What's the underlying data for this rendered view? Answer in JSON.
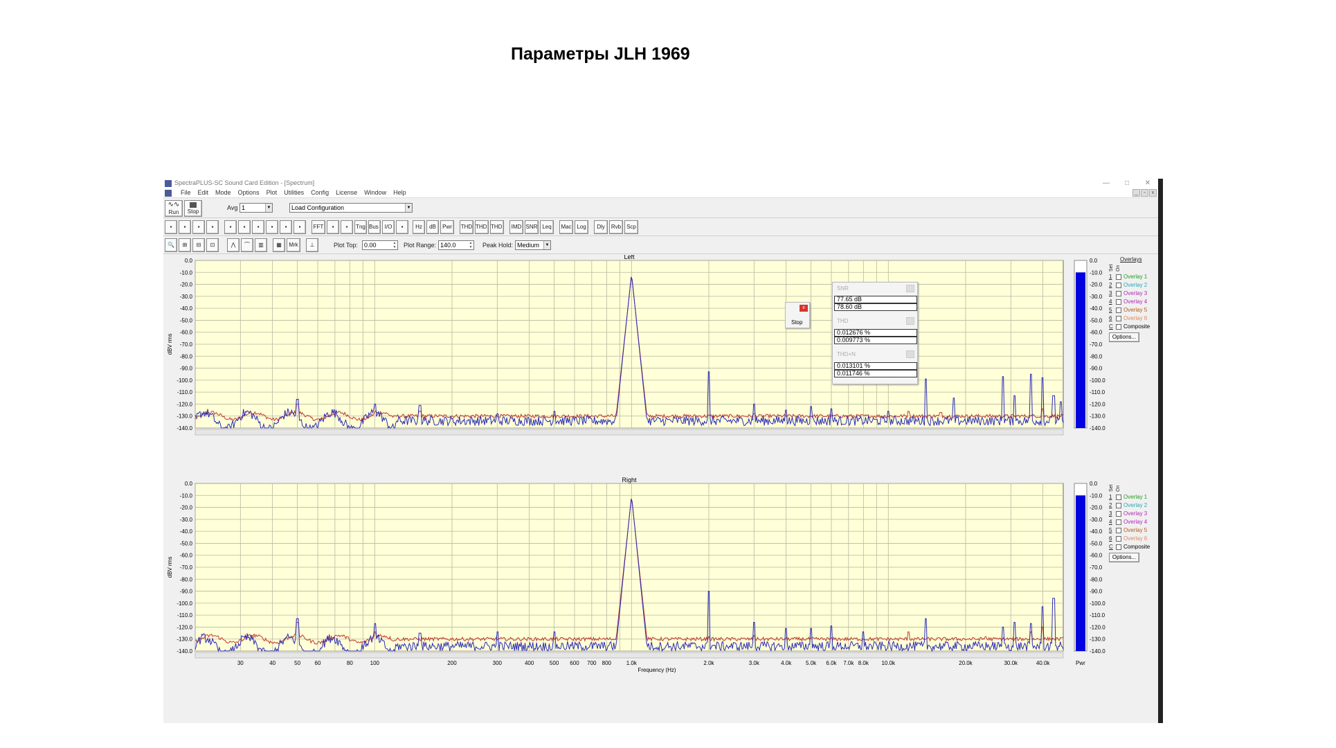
{
  "page_title": "Параметры JLH 1969",
  "window": {
    "title": "SpectraPLUS-SC Sound Card Edition - [Spectrum]",
    "minimize_glyph": "—",
    "maximize_glyph": "□",
    "close_glyph": "✕"
  },
  "menu": [
    "File",
    "Edit",
    "Mode",
    "Options",
    "Plot",
    "Utilities",
    "Config",
    "License",
    "Window",
    "Help"
  ],
  "toolbar1": {
    "run_label": "Run",
    "stop_label": "Stop",
    "avg_label": "Avg",
    "avg_value": "1",
    "config_value": "Load Configuration"
  },
  "toolbar2": [
    "",
    "",
    "",
    "",
    "",
    "",
    "",
    "",
    "",
    "",
    "FFT",
    "",
    "",
    "Tng",
    "Bus Ctrl",
    "I/O",
    "",
    "Hz",
    "dB",
    "Pwr",
    "THD",
    "THD +N",
    "THD Freq",
    "IMD",
    "SNR",
    "Leq",
    "Mac",
    "Log",
    "Dly",
    "Rvb",
    "Scp"
  ],
  "toolbar3": {
    "mrk_label": "Mrk",
    "plot_top_label": "Plot Top:",
    "plot_top_value": "0.00",
    "plot_range_label": "Plot Range:",
    "plot_range_value": "140.0",
    "peak_hold_label": "Peak Hold:",
    "peak_hold_value": "Medium"
  },
  "stop_popup": {
    "label": "Stop",
    "close": "x"
  },
  "meters": [
    {
      "name": "SNR",
      "values": [
        "77.65 dB",
        "78.60 dB"
      ]
    },
    {
      "name": "THD",
      "values": [
        "0.012676 %",
        "0.009773 %"
      ]
    },
    {
      "name": "THD+N",
      "values": [
        "0.013101 %",
        "0.011746 %"
      ]
    }
  ],
  "overlays": {
    "title": "Overlays",
    "col_set": "Set",
    "col_on": "On",
    "items": [
      {
        "num": "1",
        "label": "Overlay 1",
        "color": "#22a022"
      },
      {
        "num": "2",
        "label": "Overlay 2",
        "color": "#2aa6b8"
      },
      {
        "num": "3",
        "label": "Overlay 3",
        "color": "#b02ab0"
      },
      {
        "num": "4",
        "label": "Overlay 4",
        "color": "#b02ab0"
      },
      {
        "num": "5",
        "label": "Overlay 5",
        "color": "#b35a1a"
      },
      {
        "num": "6",
        "label": "Overlay 6",
        "color": "#e08a5a"
      },
      {
        "num": "C",
        "label": "Composite",
        "color": "#000000"
      }
    ],
    "options_label": "Options..."
  },
  "chart_data": {
    "type": "line",
    "xlabel": "Frequency (Hz)",
    "x_scale": "log",
    "xlim": [
      20,
      48000
    ],
    "x_ticks": [
      "30",
      "40",
      "50",
      "60",
      "80",
      "100",
      "200",
      "300",
      "400",
      "500",
      "600",
      "700",
      "800",
      "1.0k",
      "2.0k",
      "3.0k",
      "4.0k",
      "5.0k",
      "6.0k",
      "7.0k",
      "8.0k",
      "10.0k",
      "20.0k",
      "30.0k",
      "40.0k"
    ],
    "x_tick_values": [
      30,
      40,
      50,
      60,
      80,
      100,
      200,
      300,
      400,
      500,
      600,
      700,
      800,
      1000,
      2000,
      3000,
      4000,
      5000,
      6000,
      7000,
      8000,
      10000,
      20000,
      30000,
      40000
    ],
    "ylabel": "dBV rms",
    "ylim": [
      -140,
      0
    ],
    "y_ticks": [
      "0.0",
      "-10.0",
      "-20.0",
      "-30.0",
      "-40.0",
      "-50.0",
      "-60.0",
      "-70.0",
      "-80.0",
      "-90.0",
      "-100.0",
      "-110.0",
      "-120.0",
      "-130.0",
      "-140.0"
    ],
    "meter_label": "Pwr",
    "meter_level_db": -10,
    "panels": [
      {
        "title": "Left",
        "series": [
          {
            "color": "#c03a2a",
            "fundamental_hz": 1000,
            "fundamental_db": -12,
            "noise_floor_db": -130,
            "spurs": [
              [
                50,
                -120
              ],
              [
                100,
                -126
              ],
              [
                150,
                -126
              ],
              [
                2000,
                -131
              ],
              [
                3000,
                -128
              ],
              [
                5000,
                -131
              ],
              [
                12000,
                -126
              ],
              [
                16000,
                -127
              ],
              [
                24000,
                -133
              ],
              [
                36000,
                -130
              ],
              [
                40000,
                -124
              ]
            ]
          },
          {
            "color": "#2a2ab8",
            "fundamental_hz": 1000,
            "fundamental_db": -11,
            "noise_floor_db": -134,
            "spurs": [
              [
                50,
                -116
              ],
              [
                100,
                -120
              ],
              [
                150,
                -121
              ],
              [
                300,
                -128
              ],
              [
                500,
                -126
              ],
              [
                2000,
                -93
              ],
              [
                3000,
                -120
              ],
              [
                4000,
                -125
              ],
              [
                5000,
                -122
              ],
              [
                6000,
                -124
              ],
              [
                10000,
                -126
              ],
              [
                14000,
                -99
              ],
              [
                18000,
                -115
              ],
              [
                28000,
                -97
              ],
              [
                31000,
                -113
              ],
              [
                36000,
                -95
              ],
              [
                40000,
                -98
              ],
              [
                44000,
                -113
              ],
              [
                47000,
                -118
              ]
            ]
          }
        ]
      },
      {
        "title": "Right",
        "series": [
          {
            "color": "#c03a2a",
            "fundamental_hz": 1000,
            "fundamental_db": -11,
            "noise_floor_db": -130,
            "spurs": [
              [
                50,
                -116
              ],
              [
                100,
                -124
              ],
              [
                2000,
                -128
              ],
              [
                3000,
                -127
              ],
              [
                5000,
                -130
              ],
              [
                12000,
                -124
              ],
              [
                24000,
                -128
              ],
              [
                36000,
                -124
              ],
              [
                40000,
                -120
              ]
            ]
          },
          {
            "color": "#2a2ab8",
            "fundamental_hz": 1000,
            "fundamental_db": -10,
            "noise_floor_db": -136,
            "spurs": [
              [
                50,
                -113
              ],
              [
                100,
                -117
              ],
              [
                150,
                -125
              ],
              [
                300,
                -124
              ],
              [
                500,
                -124
              ],
              [
                2000,
                -90
              ],
              [
                3000,
                -116
              ],
              [
                4000,
                -121
              ],
              [
                5000,
                -121
              ],
              [
                6000,
                -119
              ],
              [
                8000,
                -124
              ],
              [
                14000,
                -113
              ],
              [
                28000,
                -120
              ],
              [
                31000,
                -116
              ],
              [
                36000,
                -117
              ],
              [
                40000,
                -103
              ],
              [
                44000,
                -96
              ]
            ]
          }
        ]
      }
    ]
  }
}
